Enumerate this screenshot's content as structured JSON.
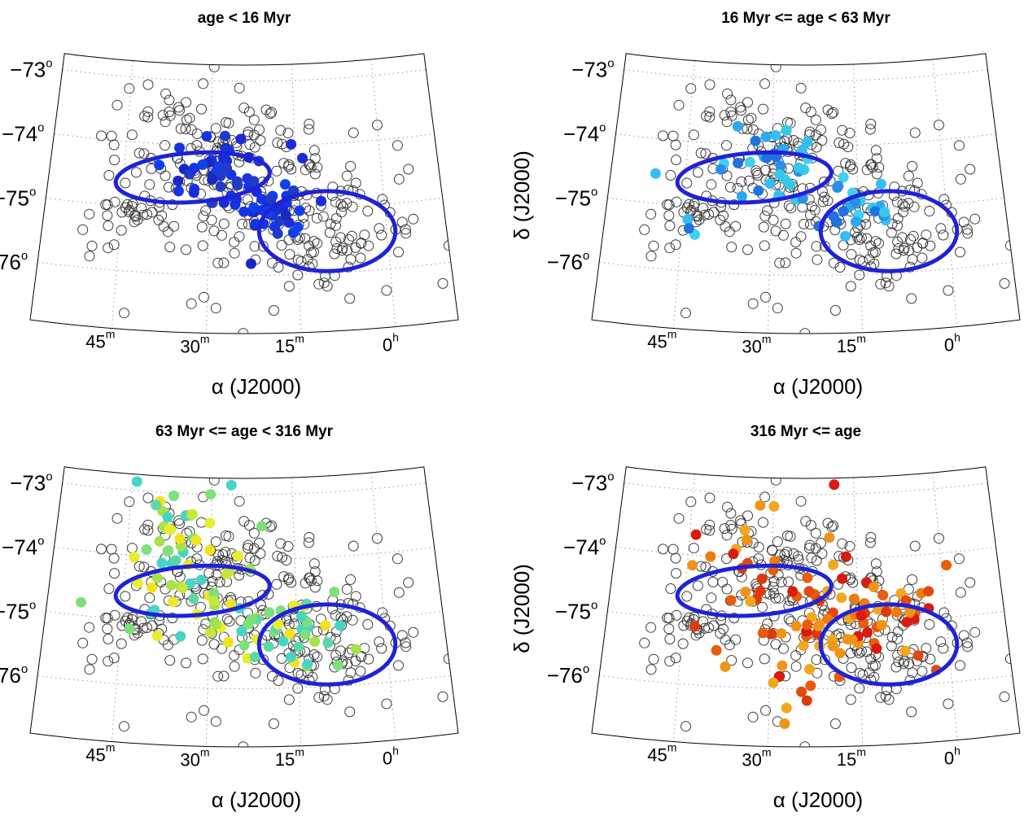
{
  "chart_data": [
    {
      "type": "scatter",
      "title": "age < 16 Myr",
      "xlabel": "α (J2000)",
      "ylabel": "",
      "x_ticks": [
        {
          "m": "45",
          "u": "m"
        },
        {
          "m": "30",
          "u": "m"
        },
        {
          "m": "15",
          "u": "m"
        },
        {
          "m": "0",
          "u": "h"
        }
      ],
      "y_ticks": [
        {
          "v": "−73",
          "u": "o"
        },
        {
          "v": "−74",
          "u": "o"
        },
        {
          "v": "−75",
          "u": "o"
        },
        {
          "v": "−76",
          "u": "o"
        }
      ],
      "filled_series": {
        "colors": [
          "#1a2bd8",
          "#1534e6",
          "#0f3fee",
          "#233ac7",
          "#1828c0"
        ],
        "clusters": [
          {
            "ra_min": 28.5,
            "dec": -74.35,
            "n": 40,
            "sra": 4.5,
            "sdec": 0.25
          },
          {
            "ra_min": 19.0,
            "dec": -75.05,
            "n": 40,
            "sra": 3.0,
            "sdec": 0.22
          }
        ]
      },
      "ellipses": [
        {
          "ra_min": 33.0,
          "dec": -74.5,
          "a_min": 13.5,
          "b_deg": 0.38,
          "tilt": -4
        },
        {
          "ra_min": 10.0,
          "dec": -75.35,
          "a_min": 11.5,
          "b_deg": 0.62,
          "tilt": 0
        }
      ]
    },
    {
      "type": "scatter",
      "title": "16 Myr <= age < 63 Myr",
      "xlabel": "α (J2000)",
      "ylabel": "δ (J2000)",
      "x_ticks": [
        {
          "m": "45",
          "u": "m"
        },
        {
          "m": "30",
          "u": "m"
        },
        {
          "m": "15",
          "u": "m"
        },
        {
          "m": "0",
          "u": "h"
        }
      ],
      "y_ticks": [
        {
          "v": "−73",
          "u": "o"
        },
        {
          "v": "−74",
          "u": "o"
        },
        {
          "v": "−75",
          "u": "o"
        },
        {
          "v": "−76",
          "u": "o"
        }
      ],
      "filled_series": {
        "colors": [
          "#2aa9f0",
          "#36bdf5",
          "#2c8ee8",
          "#40d0f2",
          "#1f72e0",
          "#37c8e8"
        ],
        "clusters": [
          {
            "ra_min": 30.0,
            "dec": -74.3,
            "n": 30,
            "sra": 5.0,
            "sdec": 0.3
          },
          {
            "ra_min": 17.0,
            "dec": -75.05,
            "n": 22,
            "sra": 4.0,
            "sdec": 0.25
          },
          {
            "ra_min": 45.0,
            "dec": -75.0,
            "n": 5,
            "sra": 4.0,
            "sdec": 0.4
          }
        ]
      },
      "ellipses": [
        {
          "ra_min": 33.0,
          "dec": -74.5,
          "a_min": 13.5,
          "b_deg": 0.38,
          "tilt": -4
        },
        {
          "ra_min": 10.0,
          "dec": -75.35,
          "a_min": 11.5,
          "b_deg": 0.62,
          "tilt": 0
        }
      ]
    },
    {
      "type": "scatter",
      "title": "63 Myr <= age < 316 Myr",
      "xlabel": "α (J2000)",
      "ylabel": "",
      "x_ticks": [
        {
          "m": "45",
          "u": "m"
        },
        {
          "m": "30",
          "u": "m"
        },
        {
          "m": "15",
          "u": "m"
        },
        {
          "m": "0",
          "u": "h"
        }
      ],
      "y_ticks": [
        {
          "v": "−73",
          "u": "o"
        },
        {
          "v": "−74",
          "u": "o"
        },
        {
          "v": "−75",
          "u": "o"
        },
        {
          "v": "−76",
          "u": "o"
        }
      ],
      "filled_series": {
        "colors": [
          "#e8ee2a",
          "#c8e838",
          "#a6e24a",
          "#7ee07a",
          "#5fd6a8",
          "#f0e41e",
          "#48d4c4"
        ],
        "clusters": [
          {
            "ra_min": 35.0,
            "dec": -74.0,
            "n": 55,
            "sra": 6.5,
            "sdec": 0.55
          },
          {
            "ra_min": 18.0,
            "dec": -75.1,
            "n": 45,
            "sra": 6.0,
            "sdec": 0.35
          }
        ]
      },
      "ellipses": [
        {
          "ra_min": 33.0,
          "dec": -74.5,
          "a_min": 13.5,
          "b_deg": 0.38,
          "tilt": -4
        },
        {
          "ra_min": 10.0,
          "dec": -75.35,
          "a_min": 11.5,
          "b_deg": 0.62,
          "tilt": 0
        }
      ]
    },
    {
      "type": "scatter",
      "title": "316 Myr <= age",
      "xlabel": "α (J2000)",
      "ylabel": "δ (J2000)",
      "x_ticks": [
        {
          "m": "45",
          "u": "m"
        },
        {
          "m": "30",
          "u": "m"
        },
        {
          "m": "15",
          "u": "m"
        },
        {
          "m": "0",
          "u": "h"
        }
      ],
      "y_ticks": [
        {
          "v": "−73",
          "u": "o"
        },
        {
          "v": "−74",
          "u": "o"
        },
        {
          "v": "−75",
          "u": "o"
        },
        {
          "v": "−76",
          "u": "o"
        }
      ],
      "filled_series": {
        "colors": [
          "#f07a10",
          "#e85c0e",
          "#f09418",
          "#dd3a0c",
          "#d91b10",
          "#f0a820",
          "#e04a10"
        ],
        "clusters": [
          {
            "ra_min": 14.0,
            "dec": -75.05,
            "n": 60,
            "sra": 7.0,
            "sdec": 0.4
          },
          {
            "ra_min": 32.0,
            "dec": -74.2,
            "n": 30,
            "sra": 7.0,
            "sdec": 0.6
          },
          {
            "ra_min": 26.0,
            "dec": -75.8,
            "n": 12,
            "sra": 5.0,
            "sdec": 0.3
          }
        ]
      },
      "ellipses": [
        {
          "ra_min": 33.0,
          "dec": -74.5,
          "a_min": 13.5,
          "b_deg": 0.38,
          "tilt": -4
        },
        {
          "ra_min": 10.0,
          "dec": -75.35,
          "a_min": 11.5,
          "b_deg": 0.62,
          "tilt": 0
        }
      ]
    }
  ],
  "shared": {
    "open_circles": {
      "color": "#3a3a3a",
      "clusters": [
        {
          "ra_min": 30.0,
          "dec": -74.2,
          "n": 120,
          "sra": 9.0,
          "sdec": 0.6
        },
        {
          "ra_min": 12.0,
          "dec": -75.3,
          "n": 110,
          "sra": 8.0,
          "sdec": 0.45
        },
        {
          "ra_min": 45.0,
          "dec": -75.2,
          "n": 30,
          "sra": 4.0,
          "sdec": 0.35
        },
        {
          "ra_min": 20.0,
          "dec": -74.8,
          "n": 60,
          "sra": 14.0,
          "sdec": 0.9
        }
      ]
    },
    "ellipse_color": "#1f22d6"
  }
}
